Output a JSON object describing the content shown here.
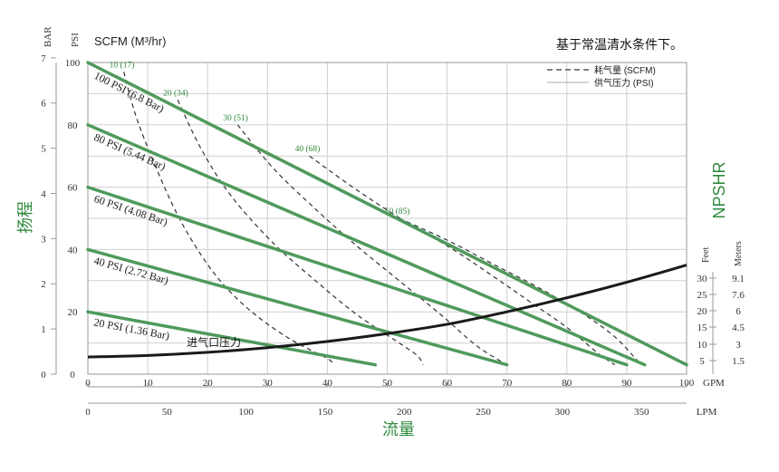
{
  "chart_data": {
    "type": "line",
    "title": "基于常温清水条件下。",
    "xlabel": "流量",
    "ylabel": "扬程",
    "y2label": "NPSHR",
    "x_units_top": "GPM",
    "x_units_bottom": "LPM",
    "y_units": [
      "BAR",
      "PSI"
    ],
    "scfm_units": "SCFM (M³/hr)",
    "npshr_units": [
      "Feet",
      "Meters"
    ],
    "xlim": [
      0,
      100
    ],
    "ylim_psi": [
      0,
      100
    ],
    "grid": true,
    "x_ticks_gpm": [
      "0",
      "10",
      "20",
      "30",
      "40",
      "50",
      "60",
      "70",
      "80",
      "90",
      "100"
    ],
    "x_ticks_lpm": [
      "0",
      "50",
      "100",
      "150",
      "200",
      "250",
      "300",
      "350"
    ],
    "x_ticks_lpm_values": [
      0,
      50,
      100,
      150,
      200,
      250,
      300,
      350
    ],
    "y_ticks_bar": [
      "0",
      "1",
      "2",
      "3",
      "4",
      "5",
      "6",
      "7"
    ],
    "y_ticks_psi": [
      "0",
      "20",
      "40",
      "60",
      "80",
      "100"
    ],
    "npshr_feet": [
      "5",
      "10",
      "15",
      "20",
      "25",
      "30"
    ],
    "npshr_meters": [
      "1.5",
      "3",
      "4.5",
      "6",
      "7.6",
      "9.1"
    ],
    "legend": {
      "position": "top-right",
      "items": [
        {
          "label": "耗气量 (SCFM)",
          "style": "dashed"
        },
        {
          "label": "供气压力 (PSI)",
          "style": "solid"
        }
      ]
    },
    "colors": {
      "pressure": "#4f9a5c",
      "air": "#333333",
      "inlet": "#1a1a1a",
      "grid": "#cfcfcf",
      "label_green": "#2f8a3c"
    },
    "series": [
      {
        "name": "100 PSI (6.8 Bar)",
        "x": [
          0,
          100
        ],
        "y": [
          100,
          3
        ]
      },
      {
        "name": "80 PSI (5.44 Bar)",
        "x": [
          0,
          93
        ],
        "y": [
          80,
          3
        ]
      },
      {
        "name": "60 PSI (4.08 Bar)",
        "x": [
          0,
          90
        ],
        "y": [
          60,
          3
        ]
      },
      {
        "name": "40 PSI (2.72 Bar)",
        "x": [
          0,
          70
        ],
        "y": [
          40,
          3
        ]
      },
      {
        "name": "20 PSI (1.36 Bar)",
        "x": [
          0,
          48
        ],
        "y": [
          20,
          3
        ]
      }
    ],
    "air_curves": [
      {
        "label": "10 (17)",
        "x": [
          6,
          8,
          11,
          15,
          19,
          23,
          28,
          34,
          40,
          41
        ],
        "y": [
          97,
          83,
          68,
          51,
          38,
          28,
          19,
          11,
          5,
          3
        ]
      },
      {
        "label": "20 (34)",
        "x": [
          15,
          19,
          24,
          31,
          38,
          45,
          52,
          55,
          56
        ],
        "y": [
          88,
          72,
          57,
          42,
          30,
          19,
          10,
          6,
          3
        ]
      },
      {
        "label": "30 (51)",
        "x": [
          25,
          31,
          38,
          45,
          52,
          59,
          65,
          70
        ],
        "y": [
          80,
          66,
          53,
          41,
          30,
          19,
          9,
          3
        ]
      },
      {
        "label": "40 (68)",
        "x": [
          37,
          45,
          53,
          61,
          68,
          74,
          80,
          85,
          88
        ],
        "y": [
          70,
          59,
          49,
          40,
          31,
          23,
          15,
          7,
          3
        ]
      },
      {
        "label": "50 (85)",
        "x": [
          52,
          60,
          68,
          76,
          83,
          88,
          91,
          92
        ],
        "y": [
          50,
          43,
          35,
          27,
          19,
          12,
          6,
          4
        ]
      }
    ],
    "inlet_pressure": {
      "label": "进气口压力",
      "x": [
        0,
        10,
        20,
        30,
        40,
        50,
        60,
        70,
        80,
        90,
        100
      ],
      "y": [
        5.5,
        6.0,
        7.0,
        8.5,
        10.5,
        13.0,
        16.0,
        20.0,
        24.5,
        29.5,
        35.0
      ]
    }
  }
}
